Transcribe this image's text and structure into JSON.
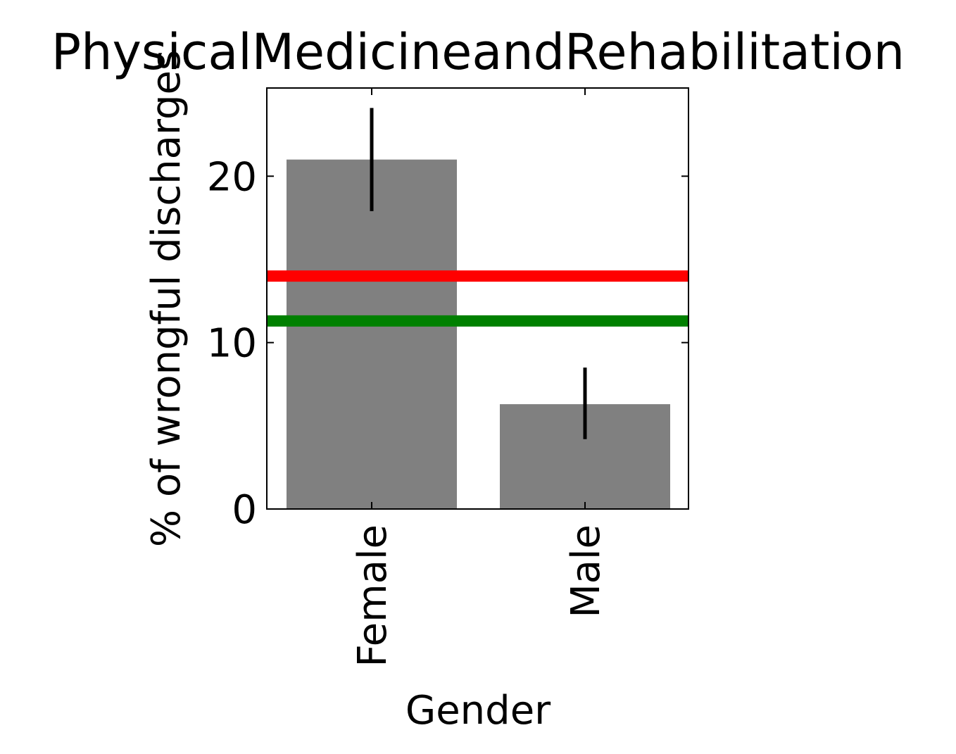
{
  "chart_data": {
    "type": "bar",
    "title": "PhysicalMedicineandRehabilitation",
    "xlabel": "Gender",
    "ylabel": "% of wrongful discharges",
    "categories": [
      "Female",
      "Male"
    ],
    "values": [
      21.0,
      6.3
    ],
    "error_low": [
      17.9,
      4.2
    ],
    "error_high": [
      24.1,
      8.5
    ],
    "reference_lines": [
      {
        "value": 14.0,
        "color": "#ff0000"
      },
      {
        "value": 11.3,
        "color": "#008000"
      }
    ],
    "ylim": [
      0,
      25.3
    ],
    "yticks": [
      "0",
      "10",
      "20"
    ],
    "yticks_values": [
      0,
      10,
      20
    ],
    "bar_color": "#808080",
    "error_color": "#000000",
    "grid": false,
    "legend": "none"
  }
}
